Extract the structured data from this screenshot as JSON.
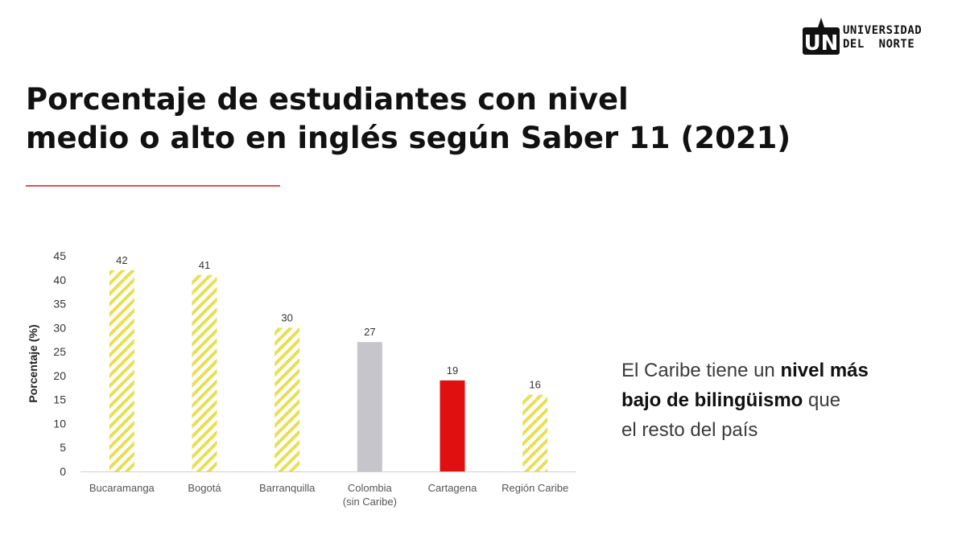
{
  "logo": {
    "mark": "UN",
    "line1": "UNIVERSIDAD",
    "line2": "DEL  NORTE"
  },
  "title": {
    "line1": "Porcentaje de estudiantes con nivel",
    "line2": "medio o alto en inglés según Saber 11 (2021)"
  },
  "callout": {
    "part1": "El Caribe tiene un ",
    "bold1": "nivel más",
    "bold2": "bajo de bilingüismo",
    "part2": " que",
    "part3": "el resto del país"
  },
  "colors": {
    "hatch": "#e8df52",
    "colombia": "#c6c5cb",
    "cartagena": "#e01010",
    "rule": "#e0505a"
  },
  "chart_data": {
    "type": "bar",
    "title": "",
    "xlabel": "",
    "ylabel": "Porcentaje (%)",
    "ylim": [
      0,
      45
    ],
    "yticks": [
      0,
      5,
      10,
      15,
      20,
      25,
      30,
      35,
      40,
      45
    ],
    "grid": false,
    "legend": "none",
    "categories": [
      {
        "label": [
          "Bucaramanga"
        ],
        "value": 42,
        "style": "hatch"
      },
      {
        "label": [
          "Bogotá"
        ],
        "value": 41,
        "style": "hatch"
      },
      {
        "label": [
          "Barranquilla"
        ],
        "value": 30,
        "style": "hatch"
      },
      {
        "label": [
          "Colombia",
          "(sin Caribe)"
        ],
        "value": 27,
        "style": "colombia"
      },
      {
        "label": [
          "Cartagena"
        ],
        "value": 19,
        "style": "cartagena"
      },
      {
        "label": [
          "Región Caribe"
        ],
        "value": 16,
        "style": "hatch"
      }
    ]
  }
}
